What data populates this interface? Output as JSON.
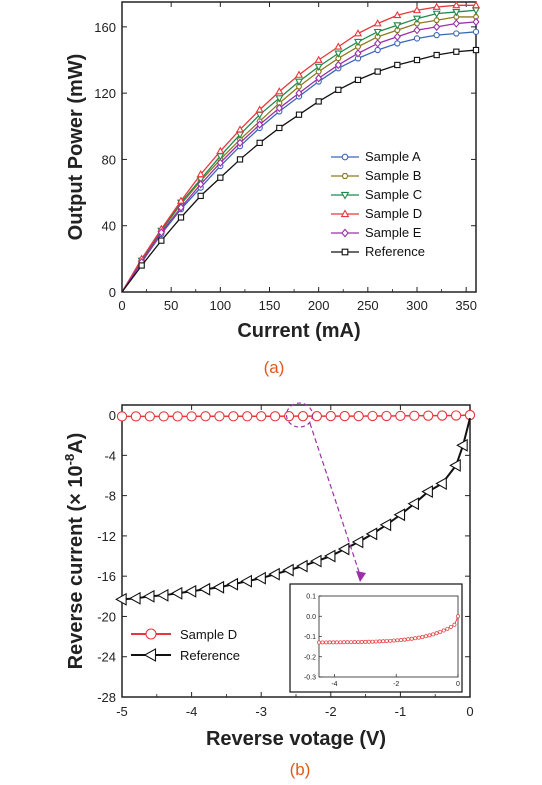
{
  "chart_data": [
    {
      "type": "line",
      "caption": "(a)",
      "xlabel": "Current (mA)",
      "ylabel": "Output Power (mW)",
      "xlim": [
        0,
        360
      ],
      "ylim": [
        0,
        175
      ],
      "xticks": [
        0,
        50,
        100,
        150,
        200,
        250,
        300,
        350
      ],
      "yticks": [
        0,
        40,
        80,
        120,
        160
      ],
      "legend_position": "center-right",
      "x": [
        0,
        20,
        40,
        60,
        80,
        100,
        120,
        140,
        160,
        180,
        200,
        220,
        240,
        260,
        280,
        300,
        320,
        340,
        360
      ],
      "series": [
        {
          "name": "Sample A",
          "marker": "circle",
          "color": "#3a67b8",
          "values": [
            0,
            18,
            35,
            50,
            63,
            76,
            88,
            99,
            109,
            118,
            127,
            135,
            141,
            146,
            150,
            153,
            155,
            156,
            157
          ]
        },
        {
          "name": "Sample B",
          "marker": "hexagon",
          "color": "#8c7a1e",
          "values": [
            0,
            19,
            37,
            53,
            67,
            80,
            92,
            103,
            114,
            124,
            133,
            141,
            148,
            154,
            158,
            162,
            164,
            166,
            166
          ]
        },
        {
          "name": "Sample C",
          "marker": "triangle-down",
          "color": "#1e8a4a",
          "values": [
            0,
            19,
            37,
            54,
            68,
            82,
            95,
            107,
            117,
            127,
            136,
            144,
            151,
            157,
            161,
            165,
            168,
            169,
            170
          ]
        },
        {
          "name": "Sample D",
          "marker": "triangle-up",
          "color": "#e8373c",
          "values": [
            0,
            20,
            38,
            55,
            71,
            85,
            98,
            110,
            121,
            131,
            140,
            148,
            156,
            162,
            167,
            170,
            172,
            173,
            173
          ]
        },
        {
          "name": "Sample E",
          "marker": "diamond",
          "color": "#9b30a8",
          "values": [
            0,
            18,
            36,
            51,
            65,
            78,
            90,
            101,
            111,
            120,
            129,
            137,
            144,
            150,
            154,
            158,
            160,
            162,
            163
          ]
        },
        {
          "name": "Reference",
          "marker": "square",
          "color": "#111111",
          "values": [
            0,
            16,
            31,
            45,
            58,
            69,
            80,
            90,
            99,
            107,
            115,
            122,
            128,
            133,
            137,
            140,
            143,
            145,
            146
          ]
        }
      ]
    },
    {
      "type": "line",
      "caption": "(b)",
      "xlabel": "Reverse votage (V)",
      "ylabel_main": "Reverse current (× 10",
      "ylabel_exp": "-8",
      "ylabel_end": "A)",
      "xlim": [
        -5,
        0
      ],
      "ylim": [
        -28,
        1
      ],
      "xticks": [
        -5,
        -4,
        -3,
        -2,
        -1,
        0
      ],
      "yticks": [
        0,
        -4,
        -8,
        -12,
        -16,
        -20,
        -24,
        -28
      ],
      "legend_position": "bottom-left",
      "series": [
        {
          "name": "Sample D",
          "marker": "circle",
          "color": "#e8373c",
          "x": [
            -5,
            -4.8,
            -4.6,
            -4.4,
            -4.2,
            -4,
            -3.8,
            -3.6,
            -3.4,
            -3.2,
            -3,
            -2.8,
            -2.6,
            -2.4,
            -2.2,
            -2,
            -1.8,
            -1.6,
            -1.4,
            -1.2,
            -1,
            -0.8,
            -0.6,
            -0.4,
            -0.2,
            0
          ],
          "values": [
            -0.13,
            -0.13,
            -0.13,
            -0.13,
            -0.13,
            -0.13,
            -0.12,
            -0.12,
            -0.12,
            -0.12,
            -0.12,
            -0.12,
            -0.11,
            -0.11,
            -0.11,
            -0.1,
            -0.1,
            -0.1,
            -0.09,
            -0.09,
            -0.08,
            -0.07,
            -0.06,
            -0.05,
            -0.04,
            0
          ]
        },
        {
          "name": "Reference",
          "marker": "triangle-left",
          "color": "#111111",
          "x": [
            -5,
            -4.8,
            -4.6,
            -4.4,
            -4.2,
            -4,
            -3.8,
            -3.6,
            -3.4,
            -3.2,
            -3,
            -2.8,
            -2.6,
            -2.4,
            -2.2,
            -2,
            -1.8,
            -1.6,
            -1.4,
            -1.2,
            -1,
            -0.8,
            -0.6,
            -0.4,
            -0.2,
            -0.1,
            0
          ],
          "values": [
            -18.3,
            -18.2,
            -18.0,
            -17.9,
            -17.7,
            -17.5,
            -17.3,
            -17.1,
            -16.8,
            -16.5,
            -16.2,
            -15.8,
            -15.4,
            -15.0,
            -14.5,
            -14.0,
            -13.3,
            -12.6,
            -11.8,
            -10.9,
            -9.9,
            -8.8,
            -7.6,
            -6.8,
            -5.0,
            -3.0,
            -0.3
          ]
        }
      ],
      "inset": {
        "xlim": [
          -4.5,
          0
        ],
        "ylim": [
          -0.3,
          0.1
        ],
        "xticks": [
          -4,
          -2,
          0
        ],
        "yticks": [
          0.1,
          0,
          -0.1,
          -0.2,
          -0.3
        ],
        "ytick_labels": [
          "0.1",
          "0.0",
          "-0.1",
          "-0.2",
          "-0.3"
        ]
      }
    }
  ]
}
